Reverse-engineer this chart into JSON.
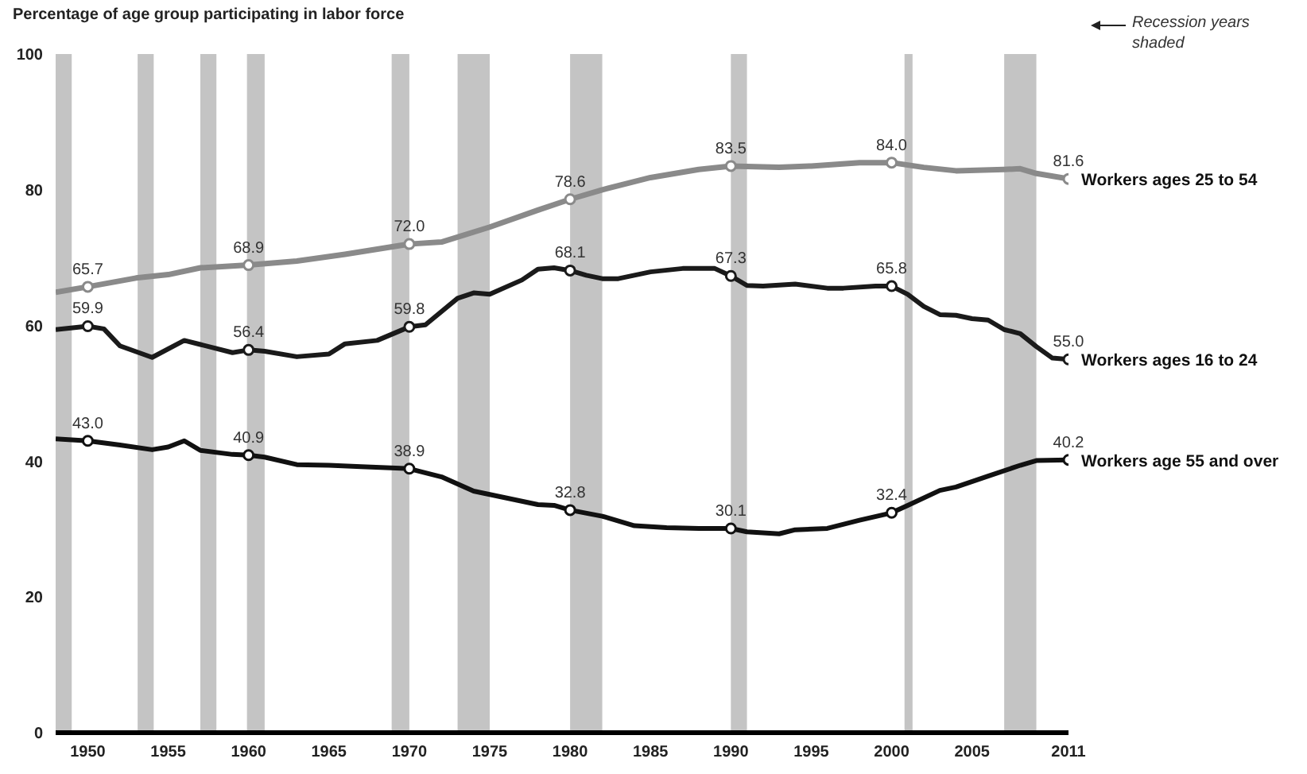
{
  "chart_data": {
    "type": "line",
    "ylabel": "Percentage of age group participating in labor force",
    "xlim": [
      1948,
      2011
    ],
    "xticks": [
      1950,
      1955,
      1960,
      1965,
      1970,
      1975,
      1980,
      1985,
      1990,
      1995,
      2000,
      2005,
      2011
    ],
    "ylim": [
      0,
      100
    ],
    "yticks": [
      0,
      20,
      40,
      60,
      80,
      100
    ],
    "grid": false,
    "line_style": "solid",
    "series": [
      {
        "name": "Workers ages 25 to 54",
        "color": "#8a8a8a",
        "x": [
          1948,
          1950,
          1953,
          1955,
          1957,
          1960,
          1963,
          1966,
          1970,
          1972,
          1975,
          1978,
          1980,
          1982,
          1985,
          1988,
          1990,
          1993,
          1995,
          1998,
          2000,
          2002,
          2004,
          2007,
          2008,
          2009,
          2011
        ],
        "values": [
          64.9,
          65.7,
          67.0,
          67.5,
          68.5,
          68.9,
          69.5,
          70.5,
          72.0,
          72.3,
          74.5,
          77.0,
          78.6,
          80.0,
          81.8,
          83.0,
          83.5,
          83.3,
          83.5,
          84.0,
          84.0,
          83.3,
          82.8,
          83.0,
          83.1,
          82.4,
          81.6
        ],
        "value_labels": [
          null,
          "65.7",
          null,
          null,
          null,
          "68.9",
          null,
          null,
          "72.0",
          null,
          null,
          null,
          "78.6",
          null,
          null,
          null,
          "83.5",
          null,
          null,
          null,
          "84.0",
          null,
          null,
          null,
          null,
          null,
          "81.6"
        ]
      },
      {
        "name": "Workers ages 16 to 24",
        "color": "#1a1a1a",
        "x": [
          1948,
          1950,
          1951,
          1952,
          1954,
          1956,
          1957,
          1959,
          1960,
          1961,
          1963,
          1965,
          1966,
          1968,
          1970,
          1971,
          1973,
          1974,
          1975,
          1977,
          1978,
          1979,
          1980,
          1981,
          1982,
          1983,
          1985,
          1987,
          1989,
          1990,
          1991,
          1992,
          1994,
          1996,
          1997,
          1999,
          2000,
          2001,
          2002,
          2003,
          2004,
          2005,
          2006,
          2007,
          2008,
          2009,
          2010,
          2011
        ],
        "values": [
          59.4,
          59.9,
          59.5,
          57.0,
          55.3,
          57.8,
          57.2,
          56.0,
          56.4,
          56.2,
          55.4,
          55.8,
          57.3,
          57.8,
          59.8,
          60.1,
          64.0,
          64.8,
          64.6,
          66.7,
          68.3,
          68.5,
          68.1,
          67.4,
          66.9,
          66.9,
          67.9,
          68.4,
          68.4,
          67.3,
          65.9,
          65.8,
          66.1,
          65.5,
          65.5,
          65.8,
          65.8,
          64.6,
          62.8,
          61.6,
          61.5,
          61.0,
          60.8,
          59.4,
          58.8,
          56.9,
          55.2,
          55.0
        ],
        "value_labels": [
          null,
          "59.9",
          null,
          null,
          null,
          null,
          null,
          null,
          "56.4",
          null,
          null,
          null,
          null,
          null,
          "59.8",
          null,
          null,
          null,
          null,
          null,
          null,
          null,
          "68.1",
          null,
          null,
          null,
          null,
          null,
          null,
          "67.3",
          null,
          null,
          null,
          null,
          null,
          null,
          "65.8",
          null,
          null,
          null,
          null,
          null,
          null,
          null,
          null,
          null,
          null,
          "55.0"
        ]
      },
      {
        "name": "Workers age 55 and over",
        "color": "#111111",
        "x": [
          1948,
          1950,
          1952,
          1954,
          1955,
          1956,
          1957,
          1959,
          1960,
          1961,
          1963,
          1965,
          1967,
          1970,
          1972,
          1974,
          1976,
          1978,
          1979,
          1980,
          1982,
          1984,
          1986,
          1988,
          1990,
          1991,
          1993,
          1994,
          1996,
          1998,
          2000,
          2001,
          2003,
          2004,
          2006,
          2008,
          2009,
          2011
        ],
        "values": [
          43.3,
          43.0,
          42.4,
          41.7,
          42.1,
          43.0,
          41.6,
          41.0,
          40.9,
          40.6,
          39.5,
          39.4,
          39.2,
          38.9,
          37.7,
          35.6,
          34.6,
          33.6,
          33.5,
          32.8,
          31.9,
          30.5,
          30.2,
          30.1,
          30.1,
          29.6,
          29.3,
          29.9,
          30.1,
          31.3,
          32.4,
          33.5,
          35.7,
          36.2,
          37.8,
          39.4,
          40.1,
          40.2
        ],
        "value_labels": [
          null,
          "43.0",
          null,
          null,
          null,
          null,
          null,
          null,
          "40.9",
          null,
          null,
          null,
          null,
          "38.9",
          null,
          null,
          null,
          null,
          null,
          "32.8",
          null,
          null,
          null,
          null,
          "30.1",
          null,
          null,
          null,
          null,
          null,
          "32.4",
          null,
          null,
          null,
          null,
          null,
          null,
          "40.2"
        ]
      }
    ],
    "bands": [
      {
        "axis": "x",
        "from": 1948,
        "to": 1949,
        "color": "#c4c4c4"
      },
      {
        "axis": "x",
        "from": 1953.1,
        "to": 1954.1,
        "color": "#c4c4c4"
      },
      {
        "axis": "x",
        "from": 1957,
        "to": 1958,
        "color": "#c4c4c4"
      },
      {
        "axis": "x",
        "from": 1959.9,
        "to": 1961,
        "color": "#c4c4c4"
      },
      {
        "axis": "x",
        "from": 1968.9,
        "to": 1970,
        "color": "#c4c4c4"
      },
      {
        "axis": "x",
        "from": 1973,
        "to": 1975,
        "color": "#c4c4c4"
      },
      {
        "axis": "x",
        "from": 1980,
        "to": 1982,
        "color": "#c4c4c4"
      },
      {
        "axis": "x",
        "from": 1990,
        "to": 1991,
        "color": "#c4c4c4"
      },
      {
        "axis": "x",
        "from": 2000.8,
        "to": 2001.3,
        "color": "#c4c4c4"
      },
      {
        "axis": "x",
        "from": 2007,
        "to": 2009,
        "color": "#c4c4c4"
      }
    ],
    "annotations": [
      "Recession years shaded"
    ]
  }
}
